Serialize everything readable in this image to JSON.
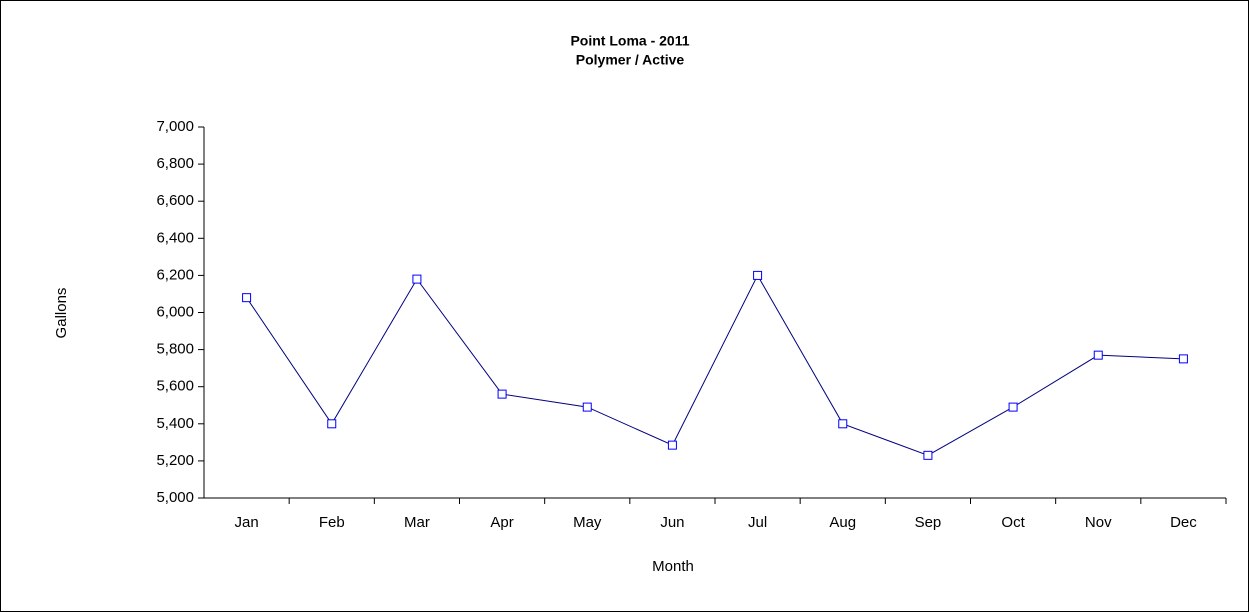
{
  "chart_data": {
    "type": "line",
    "title": "Point Loma - 2011",
    "subtitle": "Polymer / Active",
    "x_label": "Month",
    "y_label": "Gallons",
    "categories": [
      "Jan",
      "Feb",
      "Mar",
      "Apr",
      "May",
      "Jun",
      "Jul",
      "Aug",
      "Sep",
      "Oct",
      "Nov",
      "Dec"
    ],
    "values": [
      6080,
      5400,
      6180,
      5560,
      5490,
      5285,
      6200,
      5400,
      5230,
      5490,
      5770,
      5750
    ],
    "color": "#000080",
    "marker_color": "#0000ff",
    "ylim": [
      5000,
      7000
    ],
    "yticks": [
      {
        "value": 5000,
        "label": "5,000"
      },
      {
        "value": 5200,
        "label": "5,200"
      },
      {
        "value": 5400,
        "label": "5,400"
      },
      {
        "value": 5600,
        "label": "5,600"
      },
      {
        "value": 5800,
        "label": "5,800"
      },
      {
        "value": 6000,
        "label": "6,000"
      },
      {
        "value": 6200,
        "label": "6,200"
      },
      {
        "value": 6400,
        "label": "6,400"
      },
      {
        "value": 6600,
        "label": "6,600"
      },
      {
        "value": 6800,
        "label": "6,800"
      },
      {
        "value": 7000,
        "label": "7,000"
      }
    ],
    "grid": false
  }
}
